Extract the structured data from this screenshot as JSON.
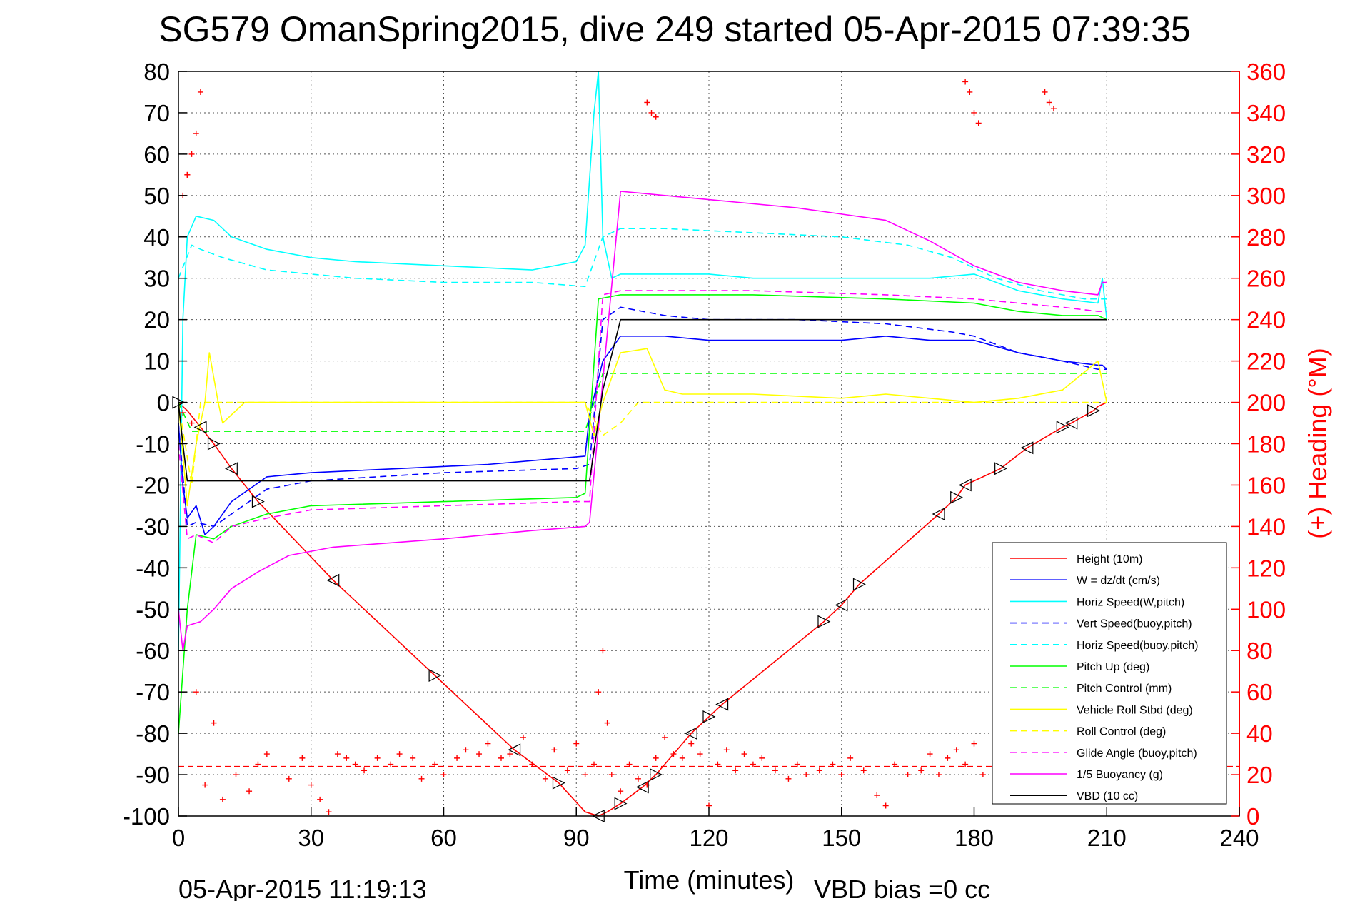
{
  "title": "SG579 OmanSpring2015, dive 249 started 05-Apr-2015 07:39:35",
  "footer": {
    "left": "05-Apr-2015 11:19:13",
    "vbd_bias": "VBD bias =0 cc"
  },
  "colors": {
    "height": "#ff0000",
    "w": "#0000ff",
    "horiz_w": "#00ffff",
    "pitch": "#00ff00",
    "roll": "#ffff00",
    "glide": "#ff00ff",
    "vbd": "#000000",
    "heading": "#ff0000"
  },
  "chart_data": {
    "type": "line",
    "title": "SG579 OmanSpring2015, dive 249 started 05-Apr-2015 07:39:35",
    "xlabel": "Time (minutes)",
    "ylabel": "",
    "y2label": "(+) Heading (°M)",
    "xlim": [
      0,
      240
    ],
    "ylim": [
      -100,
      80
    ],
    "y2lim": [
      0,
      360
    ],
    "xticks": [
      "0",
      "30",
      "60",
      "90",
      "120",
      "150",
      "180",
      "210",
      "240"
    ],
    "yticks": [
      "80",
      "70",
      "60",
      "50",
      "40",
      "30",
      "20",
      "10",
      "0",
      "-10",
      "-20",
      "-30",
      "-40",
      "-50",
      "-60",
      "-70",
      "-80",
      "-90",
      "-100"
    ],
    "y2ticks": [
      "360",
      "340",
      "320",
      "300",
      "280",
      "260",
      "240",
      "220",
      "200",
      "180",
      "160",
      "140",
      "120",
      "100",
      "80",
      "60",
      "40",
      "20",
      "0"
    ],
    "grid": true,
    "legend_position": "bottom-right",
    "series": [
      {
        "name": "Height (10m)",
        "color": "#ff0000",
        "dash": "solid",
        "x": [
          0,
          2,
          5,
          8,
          12,
          18,
          35,
          58,
          76,
          86,
          92,
          95,
          97,
          100,
          105,
          108,
          116,
          120,
          123,
          146,
          150,
          154,
          172,
          176,
          178,
          186,
          192,
          200,
          202,
          207,
          208,
          210
        ],
        "y": [
          0,
          -2,
          -6,
          -10,
          -16,
          -24,
          -43,
          -66,
          -84,
          -92,
          -99,
          -100,
          -99,
          -97,
          -93,
          -90,
          -80,
          -76,
          -73,
          -53,
          -49,
          -44,
          -27,
          -23,
          -20,
          -16,
          -11,
          -6,
          -5,
          -2,
          -1,
          0
        ]
      },
      {
        "name": "W = dz/dt (cm/s)",
        "color": "#0000ff",
        "dash": "solid",
        "x": [
          0,
          1,
          2,
          4,
          6,
          8,
          12,
          20,
          30,
          50,
          70,
          92,
          93,
          96,
          100,
          110,
          120,
          130,
          140,
          150,
          160,
          170,
          180,
          190,
          200,
          208,
          209,
          210
        ],
        "y": [
          -5,
          -20,
          -28,
          -25,
          -32,
          -30,
          -24,
          -18,
          -17,
          -16,
          -15,
          -13,
          -3,
          10,
          16,
          16,
          15,
          15,
          15,
          15,
          16,
          15,
          15,
          12,
          10,
          9,
          9,
          8
        ]
      },
      {
        "name": "Horiz Speed(W,pitch)",
        "color": "#00ffff",
        "dash": "solid",
        "x": [
          0,
          1,
          2,
          4,
          8,
          12,
          20,
          30,
          40,
          60,
          80,
          90,
          92,
          94,
          95,
          96,
          98,
          100,
          110,
          120,
          130,
          140,
          150,
          160,
          170,
          180,
          190,
          200,
          208,
          209,
          210
        ],
        "y": [
          -60,
          20,
          40,
          45,
          44,
          40,
          37,
          35,
          34,
          33,
          32,
          34,
          38,
          70,
          80,
          40,
          30,
          31,
          31,
          31,
          30,
          30,
          30,
          30,
          30,
          31,
          27,
          25,
          24,
          30,
          20
        ]
      },
      {
        "name": "Vert Speed(buoy,pitch)",
        "color": "#0000ff",
        "dash": "dashed",
        "x": [
          0,
          2,
          4,
          8,
          12,
          20,
          30,
          60,
          90,
          93,
          96,
          100,
          110,
          120,
          140,
          160,
          175,
          180,
          190,
          200,
          208,
          210
        ],
        "y": [
          -5,
          -30,
          -29,
          -30,
          -27,
          -21,
          -19,
          -17,
          -16,
          -15,
          20,
          23,
          21,
          20,
          20,
          19,
          17,
          16,
          12,
          10,
          8,
          8
        ]
      },
      {
        "name": "Horiz Speed(buoy,pitch)",
        "color": "#00ffff",
        "dash": "dashed",
        "x": [
          0,
          3,
          5,
          10,
          20,
          40,
          60,
          80,
          92,
          96,
          100,
          110,
          130,
          150,
          165,
          175,
          185,
          195,
          205,
          210
        ],
        "y": [
          30,
          38,
          37,
          35,
          32,
          30,
          29,
          29,
          28,
          40,
          42,
          42,
          41,
          40,
          38,
          35,
          30,
          27,
          25,
          25
        ]
      },
      {
        "name": "Pitch Up (deg)",
        "color": "#00ff00",
        "dash": "solid",
        "x": [
          0,
          2,
          4,
          8,
          12,
          20,
          30,
          60,
          90,
          92,
          95,
          100,
          110,
          130,
          160,
          180,
          190,
          200,
          208,
          210
        ],
        "y": [
          -80,
          -50,
          -32,
          -33,
          -30,
          -27,
          -25,
          -24,
          -23,
          -22,
          25,
          26,
          26,
          26,
          25,
          24,
          22,
          21,
          21,
          20
        ]
      },
      {
        "name": "Pitch Control (mm)",
        "color": "#00ff00",
        "dash": "dashed",
        "x": [
          0,
          3,
          5,
          92,
          94,
          96,
          208,
          210
        ],
        "y": [
          0,
          -7,
          -7,
          -7,
          0,
          7,
          7,
          7
        ]
      },
      {
        "name": "Vehicle Roll Stbd (deg)",
        "color": "#ffff00",
        "dash": "solid",
        "x": [
          0,
          2,
          4,
          6,
          7,
          9,
          10,
          15,
          40,
          92,
          94,
          96,
          100,
          106,
          110,
          114,
          130,
          150,
          160,
          170,
          180,
          190,
          200,
          208,
          210
        ],
        "y": [
          0,
          -25,
          -10,
          0,
          12,
          0,
          -5,
          0,
          0,
          0,
          -8,
          0,
          12,
          13,
          3,
          2,
          2,
          1,
          2,
          1,
          0,
          1,
          3,
          10,
          0
        ]
      },
      {
        "name": "Roll Control (deg)",
        "color": "#ffff00",
        "dash": "dashed",
        "x": [
          0,
          3,
          5,
          30,
          60,
          92,
          96,
          100,
          104,
          110,
          130,
          150,
          170,
          190,
          210
        ],
        "y": [
          0,
          -20,
          0,
          0,
          0,
          0,
          -8,
          -5,
          0,
          0,
          0,
          0,
          0,
          0,
          0
        ]
      },
      {
        "name": "Glide Angle (buoy,pitch)",
        "color": "#ff00ff",
        "dash": "dashed",
        "x": [
          0,
          2,
          4,
          8,
          12,
          20,
          30,
          60,
          90,
          93,
          96,
          100,
          110,
          130,
          160,
          180,
          190,
          200,
          208,
          210
        ],
        "y": [
          -10,
          -33,
          -32,
          -34,
          -30,
          -28,
          -26,
          -25,
          -24,
          -24,
          26,
          27,
          27,
          27,
          26,
          25,
          24,
          23,
          22,
          22
        ]
      },
      {
        "name": "1/5 Buoyancy (g)",
        "color": "#ff00ff",
        "dash": "solid",
        "x": [
          0,
          1,
          2,
          5,
          8,
          12,
          18,
          25,
          35,
          60,
          80,
          92,
          93,
          100,
          110,
          120,
          140,
          160,
          170,
          180,
          190,
          200,
          208,
          209,
          210
        ],
        "y": [
          -50,
          -60,
          -54,
          -53,
          -50,
          -45,
          -41,
          -37,
          -35,
          -33,
          -31,
          -30,
          -29,
          51,
          50,
          49,
          47,
          44,
          39,
          33,
          29,
          27,
          26,
          29,
          29
        ]
      },
      {
        "name": "VBD (10 cc)",
        "color": "#000000",
        "dash": "solid",
        "x": [
          0,
          1,
          2,
          4,
          93,
          96,
          100,
          208,
          210
        ],
        "y": [
          0,
          -10,
          -19,
          -19,
          -19,
          3,
          20,
          20,
          20
        ]
      }
    ],
    "heading_series": {
      "name": "(+) Heading (°M)",
      "color": "#ff0000",
      "marker": "+",
      "x": [
        1,
        2,
        3,
        4,
        6,
        8,
        10,
        13,
        16,
        18,
        20,
        25,
        28,
        30,
        32,
        34,
        36,
        38,
        40,
        42,
        45,
        48,
        50,
        53,
        55,
        58,
        60,
        63,
        65,
        68,
        70,
        73,
        75,
        78,
        80,
        83,
        85,
        88,
        90,
        92,
        94,
        95,
        96,
        97,
        98,
        100,
        102,
        104,
        106,
        108,
        110,
        112,
        114,
        116,
        118,
        120,
        122,
        124,
        126,
        128,
        130,
        132,
        135,
        138,
        140,
        142,
        145,
        148,
        150,
        152,
        155,
        158,
        160,
        162,
        165,
        168,
        170,
        172,
        174,
        176,
        178,
        180,
        182,
        185,
        188,
        190,
        192,
        195,
        198,
        200,
        203,
        205,
        208
      ],
      "y": [
        195,
        310,
        190,
        60,
        15,
        45,
        8,
        20,
        12,
        25,
        30,
        18,
        28,
        15,
        8,
        2,
        30,
        28,
        25,
        22,
        28,
        25,
        30,
        28,
        18,
        25,
        20,
        28,
        32,
        30,
        35,
        28,
        30,
        38,
        25,
        18,
        32,
        22,
        35,
        20,
        25,
        60,
        80,
        45,
        20,
        12,
        25,
        18,
        15,
        28,
        38,
        30,
        28,
        35,
        30,
        5,
        25,
        32,
        22,
        30,
        25,
        28,
        22,
        18,
        25,
        20,
        22,
        25,
        20,
        28,
        22,
        10,
        5,
        25,
        20,
        22,
        30,
        20,
        28,
        32,
        25,
        35,
        20,
        15,
        30,
        10,
        25,
        15,
        20,
        35,
        18,
        25,
        20
      ]
    },
    "heading_upper": {
      "x": [
        1,
        2,
        3,
        4,
        5,
        106,
        107,
        108,
        178,
        179,
        180,
        181,
        196,
        197,
        198
      ],
      "y": [
        300,
        310,
        320,
        330,
        350,
        345,
        340,
        338,
        355,
        350,
        340,
        335,
        350,
        345,
        342
      ]
    },
    "heading_reference": {
      "y": 24,
      "color": "#ff0000",
      "dash": "dashed"
    },
    "height_markers": {
      "x": [
        0,
        5,
        8,
        12,
        18,
        35,
        58,
        76,
        86,
        95,
        100,
        105,
        108,
        116,
        120,
        123,
        146,
        150,
        154,
        172,
        176,
        178,
        186,
        192,
        200,
        202,
        207
      ],
      "y": [
        0,
        -6,
        -10,
        -16,
        -24,
        -43,
        -66,
        -84,
        -92,
        -100,
        -97,
        -93,
        -90,
        -80,
        -76,
        -73,
        -53,
        -49,
        -44,
        -27,
        -23,
        -20,
        -16,
        -11,
        -6,
        -5,
        -2
      ]
    }
  }
}
